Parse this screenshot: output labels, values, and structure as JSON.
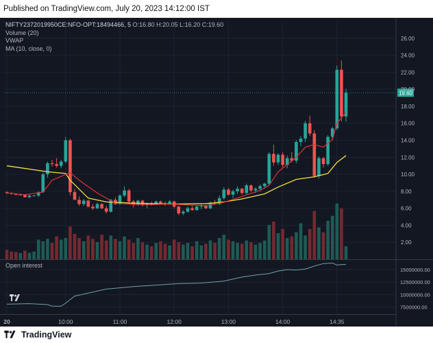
{
  "header": {
    "published": "Published on TradingView.com, July 20, 2023 14:12:00 IST"
  },
  "legend": {
    "symbol": "NIFTY2372019950CE:NFO-OPT:18494466, 5",
    "ohlc": "O:16.80 H:20.05 L:16.20 C:19.60",
    "volume": "Volume (20)",
    "vwap": "VWAP",
    "ma": "MA (10, close, 0)"
  },
  "oi_label": "Open interest",
  "footer": {
    "brand": "TradingView"
  },
  "colors": {
    "bg": "#131722",
    "up": "#26a69a",
    "down": "#ef5350",
    "vwap": "#f5e142",
    "ma": "#e0313a",
    "oi": "#6fa3a8"
  },
  "chart_data": [
    {
      "type": "candlestick",
      "title": "NIFTY2372019950CE:NFO-OPT:18494466, 5",
      "ylim": [
        0,
        28
      ],
      "yticks": [
        "2.00",
        "4.00",
        "6.00",
        "8.00",
        "10.00",
        "12.00",
        "14.00",
        "16.00",
        "18.00",
        "20.00",
        "22.00",
        "24.00",
        "26.00"
      ],
      "last_price_label": "19.60",
      "xticks": [
        "14:35",
        "20",
        "10:00",
        "11:00",
        "12:00",
        "13:00",
        "14:00",
        "14:35"
      ],
      "candles": [
        [
          7.9,
          8.0,
          7.7,
          7.8
        ],
        [
          7.8,
          7.9,
          7.6,
          7.7
        ],
        [
          7.7,
          7.8,
          7.5,
          7.6
        ],
        [
          7.6,
          7.7,
          7.5,
          7.6
        ],
        [
          7.6,
          7.6,
          7.3,
          7.3
        ],
        [
          7.3,
          7.6,
          7.2,
          7.5
        ],
        [
          7.5,
          7.6,
          7.4,
          7.5
        ],
        [
          7.5,
          8.0,
          7.3,
          7.9
        ],
        [
          7.9,
          10.2,
          7.8,
          10.0
        ],
        [
          10.0,
          11.5,
          9.6,
          11.3
        ],
        [
          11.3,
          11.7,
          10.9,
          11.2
        ],
        [
          11.2,
          11.9,
          10.8,
          11.0
        ],
        [
          11.0,
          11.7,
          10.7,
          11.5
        ],
        [
          11.5,
          14.4,
          11.3,
          14.0
        ],
        [
          14.0,
          14.2,
          7.5,
          7.9
        ],
        [
          7.9,
          8.3,
          7.0,
          7.0
        ],
        [
          7.0,
          7.4,
          6.3,
          6.5
        ],
        [
          6.5,
          7.1,
          6.3,
          6.9
        ],
        [
          6.9,
          7.0,
          6.1,
          6.2
        ],
        [
          6.2,
          6.5,
          5.8,
          6.0
        ],
        [
          6.0,
          6.7,
          5.9,
          6.5
        ],
        [
          6.5,
          6.6,
          5.9,
          6.0
        ],
        [
          6.0,
          6.3,
          5.4,
          5.6
        ],
        [
          5.6,
          7.1,
          5.5,
          7.0
        ],
        [
          7.0,
          7.3,
          6.4,
          6.5
        ],
        [
          6.5,
          7.7,
          6.4,
          7.5
        ],
        [
          7.5,
          8.6,
          7.3,
          8.1
        ],
        [
          8.1,
          8.3,
          6.5,
          6.8
        ],
        [
          6.8,
          7.0,
          6.1,
          6.4
        ],
        [
          6.4,
          7.0,
          6.3,
          6.9
        ],
        [
          6.9,
          7.0,
          6.2,
          6.4
        ],
        [
          6.4,
          6.7,
          6.0,
          6.6
        ],
        [
          6.6,
          6.8,
          6.3,
          6.5
        ],
        [
          6.5,
          6.9,
          6.4,
          6.8
        ],
        [
          6.8,
          6.9,
          6.5,
          6.6
        ],
        [
          6.6,
          6.8,
          6.3,
          6.5
        ],
        [
          6.5,
          7.0,
          6.4,
          6.8
        ],
        [
          6.8,
          6.9,
          6.0,
          6.2
        ],
        [
          6.2,
          6.3,
          5.2,
          5.4
        ],
        [
          5.4,
          5.8,
          5.2,
          5.6
        ],
        [
          5.6,
          6.2,
          5.5,
          6.0
        ],
        [
          6.0,
          6.3,
          5.7,
          5.8
        ],
        [
          5.8,
          6.4,
          5.7,
          6.2
        ],
        [
          6.2,
          6.5,
          5.9,
          6.3
        ],
        [
          6.3,
          6.4,
          5.9,
          6.0
        ],
        [
          6.0,
          6.8,
          5.9,
          6.6
        ],
        [
          6.6,
          7.0,
          6.4,
          6.5
        ],
        [
          6.5,
          7.5,
          6.4,
          7.2
        ],
        [
          7.2,
          8.5,
          7.0,
          8.2
        ],
        [
          8.2,
          8.4,
          7.5,
          7.6
        ],
        [
          7.6,
          8.2,
          7.2,
          8.0
        ],
        [
          8.0,
          8.6,
          7.7,
          8.3
        ],
        [
          8.3,
          8.4,
          7.6,
          7.8
        ],
        [
          7.8,
          8.9,
          7.6,
          8.7
        ],
        [
          8.7,
          8.8,
          7.9,
          8.1
        ],
        [
          8.1,
          8.5,
          7.8,
          8.3
        ],
        [
          8.3,
          8.8,
          8.0,
          8.6
        ],
        [
          8.6,
          9.0,
          8.3,
          8.9
        ],
        [
          8.9,
          12.6,
          8.7,
          12.4
        ],
        [
          12.4,
          13.5,
          11.0,
          11.4
        ],
        [
          11.4,
          12.5,
          11.1,
          12.3
        ],
        [
          12.3,
          12.6,
          10.8,
          11.1
        ],
        [
          11.1,
          12.2,
          10.7,
          11.9
        ],
        [
          11.9,
          12.6,
          11.4,
          11.6
        ],
        [
          11.6,
          14.0,
          11.3,
          13.8
        ],
        [
          13.8,
          14.5,
          13.3,
          14.2
        ],
        [
          14.2,
          16.3,
          13.8,
          16.0
        ],
        [
          16.0,
          16.9,
          14.5,
          14.8
        ],
        [
          14.8,
          15.2,
          9.6,
          9.8
        ],
        [
          9.8,
          12.1,
          9.5,
          11.9
        ],
        [
          11.9,
          12.0,
          10.8,
          11.2
        ],
        [
          11.2,
          14.6,
          11.0,
          14.4
        ],
        [
          14.4,
          15.6,
          14.0,
          15.4
        ],
        [
          15.4,
          22.8,
          15.2,
          22.3
        ],
        [
          22.3,
          23.4,
          16.2,
          16.8
        ],
        [
          16.8,
          20.05,
          16.2,
          19.6
        ]
      ],
      "volume": [
        1.15,
        0.95,
        0.9,
        0.75,
        1.05,
        0.8,
        0.95,
        2.4,
        2.2,
        2.5,
        2.0,
        2.8,
        2.4,
        2.6,
        4.0,
        3.1,
        2.6,
        2.2,
        2.9,
        2.5,
        2.1,
        3.0,
        2.3,
        2.9,
        2.5,
        2.2,
        2.8,
        2.4,
        2.0,
        2.6,
        2.1,
        1.8,
        1.6,
        2.0,
        2.2,
        1.9,
        1.7,
        2.4,
        2.1,
        1.8,
        2.0,
        1.6,
        2.2,
        1.7,
        1.9,
        2.3,
        2.0,
        2.6,
        3.0,
        2.4,
        2.2,
        2.0,
        1.9,
        2.3,
        2.1,
        1.8,
        2.0,
        2.3,
        4.2,
        4.6,
        3.2,
        3.7,
        2.6,
        2.8,
        3.3,
        4.4,
        2.9,
        3.7,
        5.9,
        3.9,
        3.3,
        4.7,
        5.3,
        6.8,
        6.2,
        1.6
      ],
      "vwap": [
        [
          0,
          11.0
        ],
        [
          9,
          10.3
        ],
        [
          13,
          10.1
        ],
        [
          14,
          9.3
        ],
        [
          18,
          7.2
        ],
        [
          22,
          6.75
        ],
        [
          28,
          6.6
        ],
        [
          36,
          6.5
        ],
        [
          44,
          6.55
        ],
        [
          48,
          6.75
        ],
        [
          52,
          7.1
        ],
        [
          57,
          7.7
        ],
        [
          60,
          8.5
        ],
        [
          64,
          9.4
        ],
        [
          68,
          9.7
        ],
        [
          71,
          10.1
        ],
        [
          73,
          11.4
        ],
        [
          75,
          12.2
        ]
      ],
      "ma": [
        [
          0,
          7.8
        ],
        [
          4,
          7.6
        ],
        [
          8,
          7.9
        ],
        [
          10,
          9.3
        ],
        [
          14,
          10.2
        ],
        [
          16,
          9.3
        ],
        [
          20,
          7.8
        ],
        [
          24,
          6.6
        ],
        [
          30,
          6.4
        ],
        [
          36,
          6.5
        ],
        [
          44,
          6.3
        ],
        [
          48,
          6.7
        ],
        [
          52,
          7.4
        ],
        [
          56,
          8.1
        ],
        [
          58,
          8.7
        ],
        [
          60,
          10.3
        ],
        [
          64,
          12.0
        ],
        [
          66,
          13.2
        ],
        [
          68,
          13.5
        ],
        [
          70,
          13.2
        ],
        [
          72,
          14.1
        ],
        [
          73,
          16.0
        ],
        [
          75,
          17.3
        ]
      ]
    },
    {
      "type": "line",
      "title": "Open interest",
      "ylim": [
        6500000,
        16500000
      ],
      "yticks": [
        "7500000.00",
        "10000000.00",
        "12500000.00",
        "15000000.00"
      ],
      "values": [
        [
          0,
          8100000
        ],
        [
          5,
          8200000
        ],
        [
          9,
          8000000
        ],
        [
          10,
          7700000
        ],
        [
          12,
          7700000
        ],
        [
          13,
          8300000
        ],
        [
          15,
          9700000
        ],
        [
          17,
          10100000
        ],
        [
          22,
          11100000
        ],
        [
          28,
          11600000
        ],
        [
          33,
          11900000
        ],
        [
          38,
          12200000
        ],
        [
          43,
          12300000
        ],
        [
          48,
          12700000
        ],
        [
          52,
          13500000
        ],
        [
          55,
          13900000
        ],
        [
          58,
          14200000
        ],
        [
          60,
          14700000
        ],
        [
          62,
          15000000
        ],
        [
          64,
          14900000
        ],
        [
          66,
          15100000
        ],
        [
          68,
          15700000
        ],
        [
          70,
          16200000
        ],
        [
          72,
          16300000
        ],
        [
          73,
          15900000
        ],
        [
          74,
          16000000
        ],
        [
          75,
          16000000
        ]
      ]
    }
  ]
}
